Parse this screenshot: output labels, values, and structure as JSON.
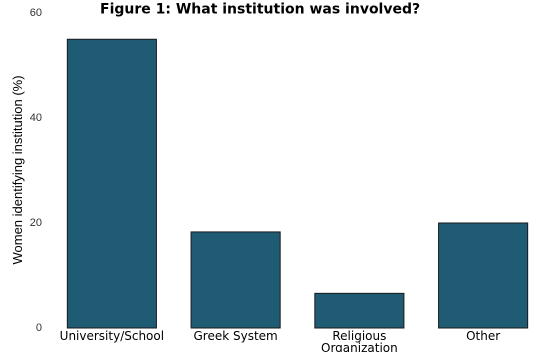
{
  "chart_data": {
    "type": "bar",
    "title": "Figure 1: What institution was involved?",
    "xlabel": "",
    "ylabel": "Women identifying institution (%)",
    "categories": [
      "University/School",
      "Greek System",
      "Religious\nOrganization",
      "Other"
    ],
    "values": [
      55.0,
      18.3,
      6.6,
      20.0
    ],
    "ylim": [
      0,
      60
    ],
    "yticks": [
      0,
      20,
      40,
      60
    ],
    "bar_color": "#1f5b73",
    "grid": false
  }
}
